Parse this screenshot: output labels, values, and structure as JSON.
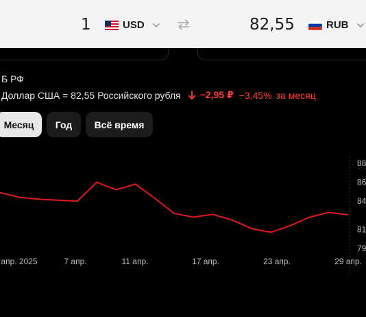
{
  "converter": {
    "from_amount": "1",
    "from_currency": "USD",
    "to_amount": "82,55",
    "to_currency": "RUB"
  },
  "source_label": "Б РФ",
  "rate_text": "Доллар США = 82,55 Российского рубля",
  "change": {
    "absolute": "−2,95 ₽",
    "percent": "−3,45%",
    "period": "за месяц",
    "color": "#ff3b30"
  },
  "tabs": [
    {
      "label": "Месяц",
      "active": true
    },
    {
      "label": "Год",
      "active": false
    },
    {
      "label": "Всё время",
      "active": false
    }
  ],
  "icons": {
    "flag_from": "us-flag-icon",
    "flag_to": "ru-flag-icon",
    "swap": "swap-arrows-icon",
    "chevron": "chevron-down-icon",
    "change_arrow": "arrow-down-icon"
  },
  "chart_data": {
    "type": "line",
    "x_tick_labels": [
      "апр. 2025",
      "7 апр.",
      "11 апр.",
      "17 апр.",
      "23 апр.",
      "29 апр."
    ],
    "y_tick_labels": [
      "88",
      "86",
      "84",
      "81",
      "79"
    ],
    "y_ticks": [
      88,
      86,
      84,
      81,
      79
    ],
    "ylim": [
      79,
      88
    ],
    "series": [
      {
        "color": "#e0191b",
        "x": [
          "1 апр.",
          "2 апр.",
          "3 апр.",
          "4 апр.",
          "5 апр.",
          "8 апр.",
          "9 апр.",
          "10 апр.",
          "12 апр.",
          "15 апр.",
          "16 апр.",
          "18 апр.",
          "19 апр.",
          "22 апр.",
          "24 апр.",
          "25 апр.",
          "26 апр.",
          "29 апр.",
          "30 апр."
        ],
        "values": [
          84.9,
          84.4,
          84.2,
          84.1,
          84.0,
          86.0,
          85.2,
          85.8,
          84.3,
          82.7,
          82.3,
          82.6,
          82.0,
          81.1,
          80.7,
          81.4,
          82.3,
          82.8,
          82.55
        ]
      }
    ]
  }
}
